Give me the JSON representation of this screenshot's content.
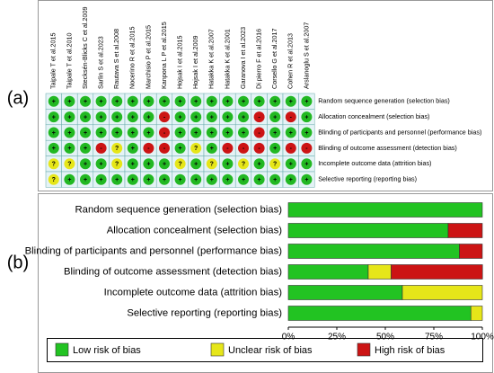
{
  "panel_labels": [
    "(a)",
    "(b)"
  ],
  "panel_a": {
    "studies": [
      "Taipale T et al.2015",
      "Taipale T et al.2010",
      "Stecksén-Blicks C et al.2009",
      "Sarlin S et al.2023",
      "Rautava S et al.2008",
      "Nocerino R et al.2015",
      "Marchisio P et al.2015",
      "Kanpona L P et al.2015",
      "Hojsak I et al.2015",
      "Hojsak I et al.2009",
      "Hatakka K et al.2007",
      "Hatakka K et al.2001",
      "Garanova I et al.2023",
      "Di pierro F et al.2016",
      "Corsello G et al.2017",
      "Cohen R et al.2013",
      "Arslanoglu S et al.2007"
    ],
    "domains": [
      "Random sequence generation (selection bias)",
      "Allocation concealment (selection bias)",
      "Blinding of participants and personnel (performance bias)",
      "Blinding of outcome assessment (detection bias)",
      "Incomplete outcome data (attrition bias)",
      "Selective reporting (reporting bias)"
    ],
    "judgments": [
      [
        "+",
        "+",
        "+",
        "+",
        "+",
        "+",
        "+",
        "+",
        "+",
        "+",
        "+",
        "+",
        "+",
        "+",
        "+",
        "+",
        "+"
      ],
      [
        "+",
        "+",
        "+",
        "+",
        "+",
        "+",
        "+",
        "-",
        "+",
        "+",
        "+",
        "+",
        "+",
        "-",
        "+",
        "-",
        "+"
      ],
      [
        "+",
        "+",
        "+",
        "+",
        "+",
        "+",
        "+",
        "-",
        "+",
        "+",
        "+",
        "+",
        "+",
        "-",
        "+",
        "+",
        "+"
      ],
      [
        "+",
        "+",
        "+",
        "-",
        "?",
        "+",
        "-",
        "-",
        "+",
        "?",
        "+",
        "-",
        "-",
        "-",
        "+",
        "-",
        "-"
      ],
      [
        "?",
        "?",
        "+",
        "+",
        "?",
        "+",
        "+",
        "+",
        "?",
        "+",
        "?",
        "+",
        "?",
        "+",
        "?",
        "+",
        "+"
      ],
      [
        "?",
        "+",
        "+",
        "+",
        "+",
        "+",
        "+",
        "+",
        "+",
        "+",
        "+",
        "+",
        "+",
        "+",
        "+",
        "+",
        "+"
      ]
    ]
  },
  "chart_data": {
    "type": "stacked-bar-horizontal",
    "categories": [
      "Random sequence generation (selection bias)",
      "Allocation concealment (selection bias)",
      "Blinding of participants and personnel (performance bias)",
      "Blinding of outcome assessment (detection bias)",
      "Incomplete outcome data (attrition bias)",
      "Selective reporting (reporting bias)"
    ],
    "series": [
      {
        "name": "Low risk of bias",
        "color": "#22c322",
        "values": [
          100,
          82.4,
          88.2,
          41.2,
          58.8,
          94.1
        ]
      },
      {
        "name": "Unclear risk of bias",
        "color": "#e6e619",
        "values": [
          0,
          0,
          0,
          11.8,
          41.2,
          5.9
        ]
      },
      {
        "name": "High risk of bias",
        "color": "#cc1414",
        "values": [
          0,
          17.6,
          11.8,
          47.1,
          0,
          0
        ]
      }
    ],
    "xlim": [
      0,
      100
    ],
    "xticks": [
      {
        "value": 0,
        "label": "0%"
      },
      {
        "value": 25,
        "label": "25%"
      },
      {
        "value": 50,
        "label": "50%"
      },
      {
        "value": 75,
        "label": "75%"
      },
      {
        "value": 100,
        "label": "100%"
      }
    ],
    "legend": "bottom"
  }
}
